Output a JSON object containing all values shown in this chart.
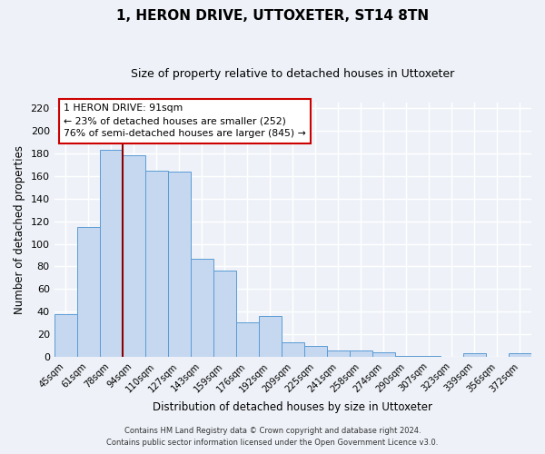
{
  "title": "1, HERON DRIVE, UTTOXETER, ST14 8TN",
  "subtitle": "Size of property relative to detached houses in Uttoxeter",
  "xlabel": "Distribution of detached houses by size in Uttoxeter",
  "ylabel": "Number of detached properties",
  "bar_labels": [
    "45sqm",
    "61sqm",
    "78sqm",
    "94sqm",
    "110sqm",
    "127sqm",
    "143sqm",
    "159sqm",
    "176sqm",
    "192sqm",
    "209sqm",
    "225sqm",
    "241sqm",
    "258sqm",
    "274sqm",
    "290sqm",
    "307sqm",
    "323sqm",
    "339sqm",
    "356sqm",
    "372sqm"
  ],
  "bar_values": [
    38,
    115,
    183,
    178,
    165,
    164,
    87,
    76,
    31,
    36,
    13,
    10,
    6,
    6,
    4,
    1,
    1,
    0,
    3,
    0,
    3
  ],
  "bar_color": "#c5d8f0",
  "bar_edge_color": "#5b9bd5",
  "vline_index": 2.5,
  "vline_color": "#8b0000",
  "ylim": [
    0,
    225
  ],
  "yticks": [
    0,
    20,
    40,
    60,
    80,
    100,
    120,
    140,
    160,
    180,
    200,
    220
  ],
  "annotation_title": "1 HERON DRIVE: 91sqm",
  "annotation_line1": "← 23% of detached houses are smaller (252)",
  "annotation_line2": "76% of semi-detached houses are larger (845) →",
  "annotation_box_color": "#ffffff",
  "annotation_box_edge": "#cc0000",
  "footer1": "Contains HM Land Registry data © Crown copyright and database right 2024.",
  "footer2": "Contains public sector information licensed under the Open Government Licence v3.0.",
  "background_color": "#eef2f8",
  "grid_color": "#ffffff",
  "title_fontsize": 11,
  "subtitle_fontsize": 9
}
